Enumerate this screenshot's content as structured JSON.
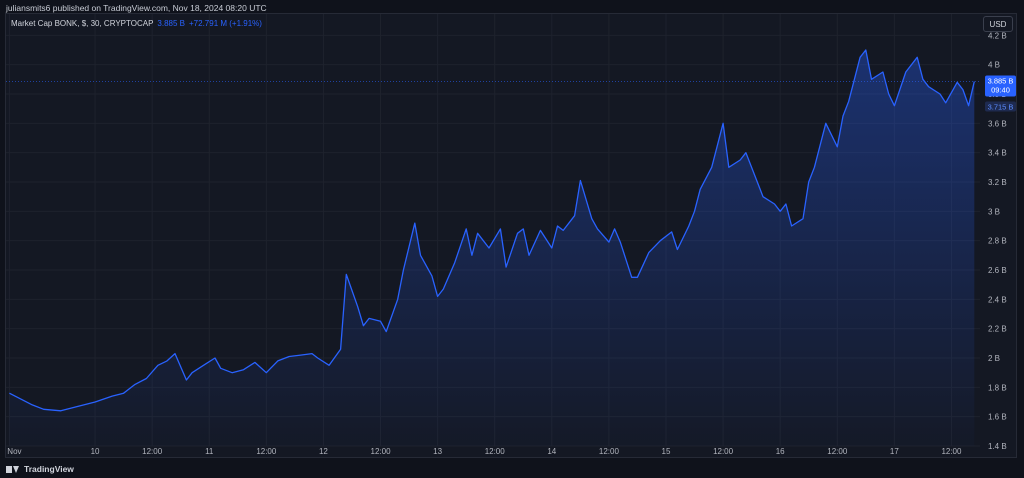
{
  "publish_info": "juliansmits6 published on TradingView.com, Nov 18, 2024 08:20 UTC",
  "legend": {
    "title": "Market Cap BONK, $, 30, CRYPTOCAP",
    "last_value": "3.885 B",
    "change": "+72.791 M (+1.91%)"
  },
  "currency_button": "USD",
  "price_tag": {
    "value": "3.885 B",
    "countdown": "09:40"
  },
  "secondary_tag": "3.715 B",
  "brand": "TradingView",
  "colors": {
    "line": "#2962ff",
    "tag": "#2962ff",
    "background": "#141823",
    "grid": "#1e222d"
  },
  "chart_data": {
    "type": "area",
    "ylim": [
      1.4,
      4.25
    ],
    "y_ticks": [
      "1.4 B",
      "1.6 B",
      "1.8 B",
      "2 B",
      "2.2 B",
      "2.4 B",
      "2.6 B",
      "2.8 B",
      "3 B",
      "3.2 B",
      "3.4 B",
      "3.6 B",
      "3.8 B",
      "4 B",
      "4.2 B"
    ],
    "y_tick_values": [
      1.4,
      1.6,
      1.8,
      2.0,
      2.2,
      2.4,
      2.6,
      2.8,
      3.0,
      3.2,
      3.4,
      3.6,
      3.8,
      4.0,
      4.2
    ],
    "x_range": [
      -0.03,
      8.5
    ],
    "x_ticks": [
      {
        "label": "Nov",
        "x": 0
      },
      {
        "label": "10",
        "x": 0.75
      },
      {
        "label": "12:00",
        "x": 1.25
      },
      {
        "label": "11",
        "x": 1.75
      },
      {
        "label": "12:00",
        "x": 2.25
      },
      {
        "label": "12",
        "x": 2.75
      },
      {
        "label": "12:00",
        "x": 3.25
      },
      {
        "label": "13",
        "x": 3.75
      },
      {
        "label": "12:00",
        "x": 4.25
      },
      {
        "label": "14",
        "x": 4.75
      },
      {
        "label": "12:00",
        "x": 5.25
      },
      {
        "label": "15",
        "x": 5.75
      },
      {
        "label": "12:00",
        "x": 6.25
      },
      {
        "label": "16",
        "x": 6.75
      },
      {
        "label": "12:00",
        "x": 7.25
      },
      {
        "label": "17",
        "x": 7.75
      },
      {
        "label": "12:00",
        "x": 8.25
      }
    ],
    "series": [
      {
        "x": [
          0,
          0.2,
          0.3,
          0.45,
          0.6,
          0.75,
          0.9,
          1.0,
          1.1,
          1.2,
          1.3,
          1.38,
          1.45,
          1.55,
          1.6,
          1.7,
          1.8,
          1.85,
          1.95,
          2.05,
          2.15,
          2.25,
          2.35,
          2.45,
          2.55,
          2.65,
          2.7,
          2.8,
          2.9,
          2.95,
          3.05,
          3.1,
          3.15,
          3.25,
          3.3,
          3.4,
          3.45,
          3.55,
          3.6,
          3.7,
          3.75,
          3.8,
          3.9,
          4.0,
          4.05,
          4.1,
          4.2,
          4.3,
          4.35,
          4.45,
          4.5,
          4.55,
          4.65,
          4.75,
          4.8,
          4.85,
          4.95,
          5.0,
          5.1,
          5.15,
          5.25,
          5.3,
          5.35,
          5.45,
          5.5,
          5.6,
          5.7,
          5.8,
          5.85,
          5.95,
          6.0,
          6.05,
          6.15,
          6.25,
          6.3,
          6.4,
          6.45,
          6.55,
          6.6,
          6.7,
          6.75,
          6.8,
          6.85,
          6.95,
          7.0,
          7.05,
          7.15,
          7.25,
          7.3,
          7.35,
          7.45,
          7.5,
          7.55,
          7.65,
          7.7,
          7.75,
          7.85,
          7.95,
          8.0,
          8.05,
          8.15,
          8.2,
          8.3,
          8.35,
          8.4,
          8.45
        ],
        "values": [
          1.76,
          1.68,
          1.65,
          1.64,
          1.67,
          1.7,
          1.74,
          1.76,
          1.82,
          1.86,
          1.95,
          1.98,
          2.03,
          1.85,
          1.9,
          1.95,
          2.0,
          1.93,
          1.9,
          1.92,
          1.97,
          1.9,
          1.98,
          2.01,
          2.02,
          2.03,
          2.0,
          1.95,
          2.06,
          2.57,
          2.35,
          2.22,
          2.27,
          2.25,
          2.18,
          2.4,
          2.6,
          2.92,
          2.7,
          2.56,
          2.42,
          2.47,
          2.65,
          2.88,
          2.7,
          2.85,
          2.75,
          2.88,
          2.62,
          2.85,
          2.88,
          2.7,
          2.87,
          2.75,
          2.9,
          2.87,
          2.97,
          3.21,
          2.95,
          2.88,
          2.79,
          2.88,
          2.79,
          2.55,
          2.55,
          2.72,
          2.8,
          2.86,
          2.74,
          2.9,
          3.0,
          3.15,
          3.3,
          3.6,
          3.3,
          3.35,
          3.4,
          3.2,
          3.1,
          3.05,
          3.0,
          3.05,
          2.9,
          2.95,
          3.2,
          3.3,
          3.6,
          3.44,
          3.65,
          3.75,
          4.05,
          4.1,
          3.9,
          3.95,
          3.8,
          3.72,
          3.95,
          4.05,
          3.9,
          3.85,
          3.8,
          3.74,
          3.88,
          3.83,
          3.72,
          3.885
        ]
      }
    ]
  }
}
